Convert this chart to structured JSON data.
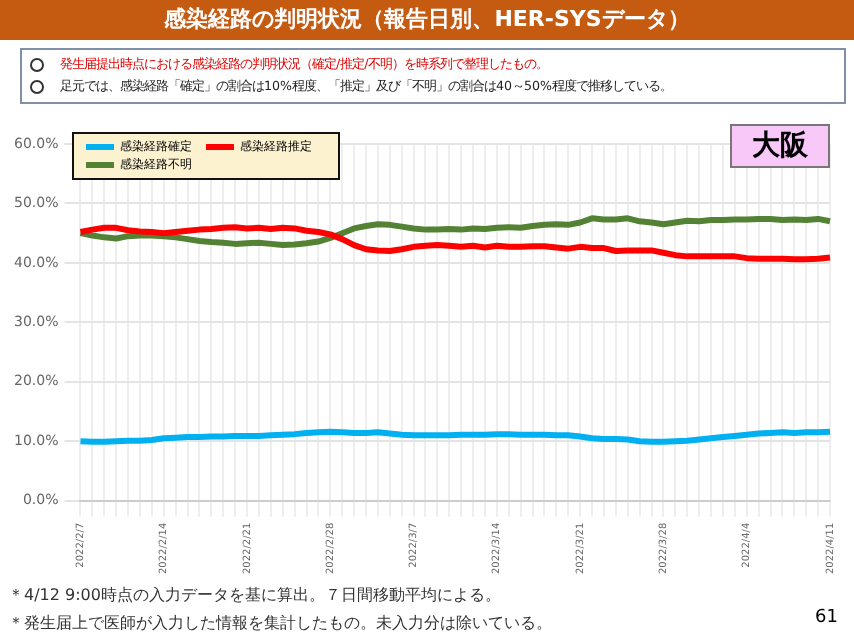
{
  "chart_data": {
    "type": "line",
    "title": "感染経路の判明状況（報告日別、HER-SYSデータ）",
    "subtitle": "大阪",
    "annotations": [
      "発生届提出時点における感染経路の判明状況（確定/推定/不明）を時系列で整理したもの。",
      "足元では、感染経路「確定」の割合は10%程度、「推定」及び「不明」の割合は40～50%程度で推移している。",
      "＊4/12 9:00時点の入力データを基に算出。７日間移動平均による。",
      "＊発生届上で医師が入力した情報を集計したもの。未入力分は除いている。",
      "61"
    ],
    "categories": [
      "2022/2/7",
      null,
      null,
      null,
      null,
      null,
      null,
      "2022/2/14",
      null,
      null,
      null,
      null,
      null,
      null,
      "2022/2/21",
      null,
      null,
      null,
      null,
      null,
      null,
      "2022/2/28",
      null,
      null,
      null,
      null,
      null,
      null,
      "2022/3/7",
      null,
      null,
      null,
      null,
      null,
      null,
      "2022/3/14",
      null,
      null,
      null,
      null,
      null,
      null,
      "2022/3/21",
      null,
      null,
      null,
      null,
      null,
      null,
      "2022/3/28",
      null,
      null,
      null,
      null,
      null,
      null,
      "2022/4/4",
      null,
      null,
      null,
      null,
      null,
      null,
      "2022/4/11"
    ],
    "series": [
      {
        "name": "感染経路確定",
        "color": "#00b0f0",
        "values": [
          10.0,
          9.9,
          9.9,
          10.0,
          10.1,
          10.1,
          10.2,
          10.5,
          10.6,
          10.7,
          10.7,
          10.8,
          10.8,
          10.9,
          10.9,
          10.9,
          11.0,
          11.1,
          11.2,
          11.4,
          11.5,
          11.6,
          11.5,
          11.4,
          11.4,
          11.5,
          11.3,
          11.1,
          11.0,
          11.0,
          11.0,
          11.0,
          11.1,
          11.1,
          11.1,
          11.2,
          11.2,
          11.1,
          11.1,
          11.1,
          11.0,
          11.0,
          10.8,
          10.5,
          10.4,
          10.4,
          10.3,
          10.0,
          9.9,
          9.9,
          10.0,
          10.1,
          10.3,
          10.5,
          10.7,
          10.9,
          11.1,
          11.3,
          11.4,
          11.5,
          11.4,
          11.5,
          11.5,
          11.6
        ]
      },
      {
        "name": "感染経路推定",
        "color": "#ff0000",
        "values": [
          45.2,
          45.6,
          45.9,
          45.9,
          45.5,
          45.3,
          45.2,
          45.0,
          45.2,
          45.4,
          45.6,
          45.7,
          45.9,
          46.0,
          45.8,
          45.9,
          45.7,
          45.9,
          45.8,
          45.4,
          45.2,
          44.8,
          44.0,
          43.0,
          42.3,
          42.1,
          42.0,
          42.3,
          42.7,
          42.9,
          43.0,
          42.9,
          42.7,
          42.9,
          42.6,
          42.9,
          42.7,
          42.7,
          42.8,
          42.8,
          42.6,
          42.4,
          42.7,
          42.5,
          42.5,
          42.0,
          42.1,
          42.1,
          42.1,
          41.7,
          41.3,
          41.1,
          41.1,
          41.1,
          41.1,
          41.1,
          40.8,
          40.7,
          40.7,
          40.7,
          40.6,
          40.6,
          40.7,
          40.9
        ]
      },
      {
        "name": "感染経路不明",
        "color": "#548235",
        "values": [
          45.0,
          44.6,
          44.3,
          44.1,
          44.5,
          44.6,
          44.6,
          44.5,
          44.3,
          44.0,
          43.7,
          43.5,
          43.4,
          43.2,
          43.3,
          43.4,
          43.2,
          43.0,
          43.1,
          43.3,
          43.6,
          44.2,
          45.0,
          45.8,
          46.2,
          46.5,
          46.4,
          46.1,
          45.8,
          45.6,
          45.6,
          45.7,
          45.6,
          45.8,
          45.7,
          45.9,
          46.0,
          45.9,
          46.2,
          46.4,
          46.5,
          46.4,
          46.8,
          47.5,
          47.3,
          47.3,
          47.5,
          47.0,
          46.8,
          46.5,
          46.8,
          47.1,
          47.0,
          47.2,
          47.2,
          47.3,
          47.3,
          47.4,
          47.4,
          47.2,
          47.3,
          47.2,
          47.4,
          47.0
        ]
      }
    ],
    "ylim": [
      0,
      60
    ],
    "yticks": [
      {
        "value": 0,
        "label": "0.0%"
      },
      {
        "value": 10,
        "label": "10.0%"
      },
      {
        "value": 20,
        "label": "20.0%"
      },
      {
        "value": 30,
        "label": "30.0%"
      },
      {
        "value": 40,
        "label": "40.0%"
      },
      {
        "value": 50,
        "label": "50.0%"
      },
      {
        "value": 60,
        "label": "60.0%"
      }
    ],
    "grid": true,
    "legend": "top left",
    "marker": "none",
    "line_style": "solid"
  }
}
